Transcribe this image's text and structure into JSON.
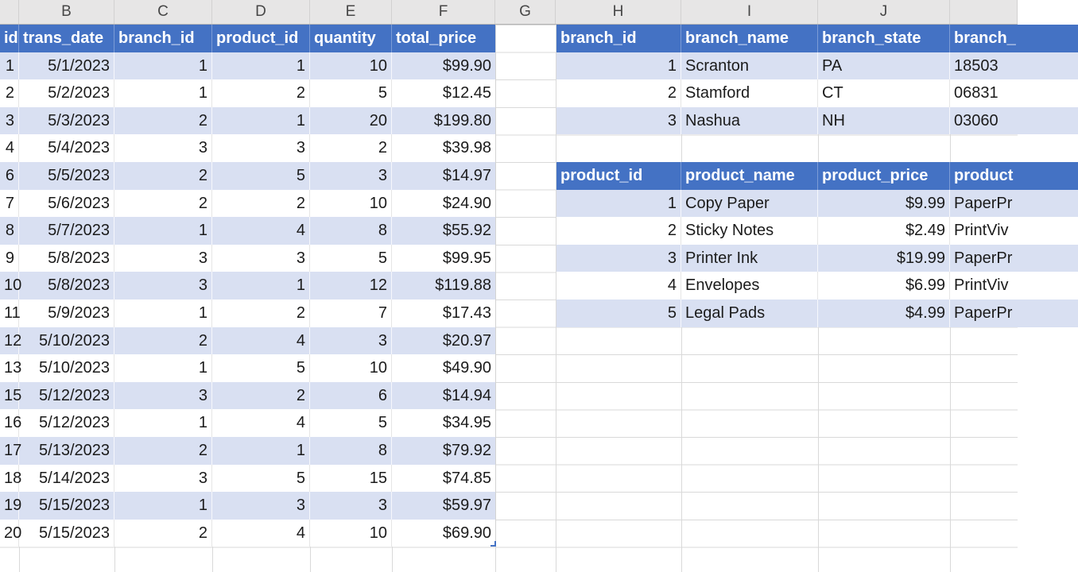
{
  "sheet": {
    "column_letters": [
      "",
      "B",
      "C",
      "D",
      "E",
      "F",
      "G",
      "H",
      "I",
      "J",
      ""
    ],
    "colors": {
      "table_header_fill": "#4472C4",
      "banded_row_fill": "#D9E0F2",
      "plain_row_fill": "#FFFFFF",
      "gridline": "#D9D9D9",
      "letter_strip_bg": "#E7E6E6",
      "resize_handle": "#4472C4"
    }
  },
  "transactions_table": {
    "headers": [
      "id",
      "trans_date",
      "branch_id",
      "product_id",
      "quantity",
      "total_price"
    ],
    "rows": [
      [
        "1",
        "5/1/2023",
        "1",
        "1",
        "10",
        "$99.90"
      ],
      [
        "2",
        "5/2/2023",
        "1",
        "2",
        "5",
        "$12.45"
      ],
      [
        "3",
        "5/3/2023",
        "2",
        "1",
        "20",
        "$199.80"
      ],
      [
        "4",
        "5/4/2023",
        "3",
        "3",
        "2",
        "$39.98"
      ],
      [
        "6",
        "5/5/2023",
        "2",
        "5",
        "3",
        "$14.97"
      ],
      [
        "7",
        "5/6/2023",
        "2",
        "2",
        "10",
        "$24.90"
      ],
      [
        "8",
        "5/7/2023",
        "1",
        "4",
        "8",
        "$55.92"
      ],
      [
        "9",
        "5/8/2023",
        "3",
        "3",
        "5",
        "$99.95"
      ],
      [
        "10",
        "5/8/2023",
        "3",
        "1",
        "12",
        "$119.88"
      ],
      [
        "11",
        "5/9/2023",
        "1",
        "2",
        "7",
        "$17.43"
      ],
      [
        "12",
        "5/10/2023",
        "2",
        "4",
        "3",
        "$20.97"
      ],
      [
        "13",
        "5/10/2023",
        "1",
        "5",
        "10",
        "$49.90"
      ],
      [
        "15",
        "5/12/2023",
        "3",
        "2",
        "6",
        "$14.94"
      ],
      [
        "16",
        "5/12/2023",
        "1",
        "4",
        "5",
        "$34.95"
      ],
      [
        "17",
        "5/13/2023",
        "2",
        "1",
        "8",
        "$79.92"
      ],
      [
        "18",
        "5/14/2023",
        "3",
        "5",
        "15",
        "$74.85"
      ],
      [
        "19",
        "5/15/2023",
        "1",
        "3",
        "3",
        "$59.97"
      ],
      [
        "20",
        "5/15/2023",
        "2",
        "4",
        "10",
        "$69.90"
      ]
    ]
  },
  "branches_table": {
    "headers": [
      "branch_id",
      "branch_name",
      "branch_state",
      "branch_"
    ],
    "rows": [
      [
        "1",
        "Scranton",
        "PA",
        "18503"
      ],
      [
        "2",
        "Stamford",
        "CT",
        "06831"
      ],
      [
        "3",
        "Nashua",
        "NH",
        "03060"
      ]
    ]
  },
  "products_table": {
    "headers": [
      "product_id",
      "product_name",
      "product_price",
      "product"
    ],
    "rows": [
      [
        "1",
        "Copy Paper",
        "$9.99",
        "PaperPr"
      ],
      [
        "2",
        "Sticky Notes",
        "$2.49",
        "PrintViv"
      ],
      [
        "3",
        "Printer Ink",
        "$19.99",
        "PaperPr"
      ],
      [
        "4",
        "Envelopes",
        "$6.99",
        "PrintViv"
      ],
      [
        "5",
        "Legal Pads",
        "$4.99",
        "PaperPr"
      ]
    ]
  }
}
